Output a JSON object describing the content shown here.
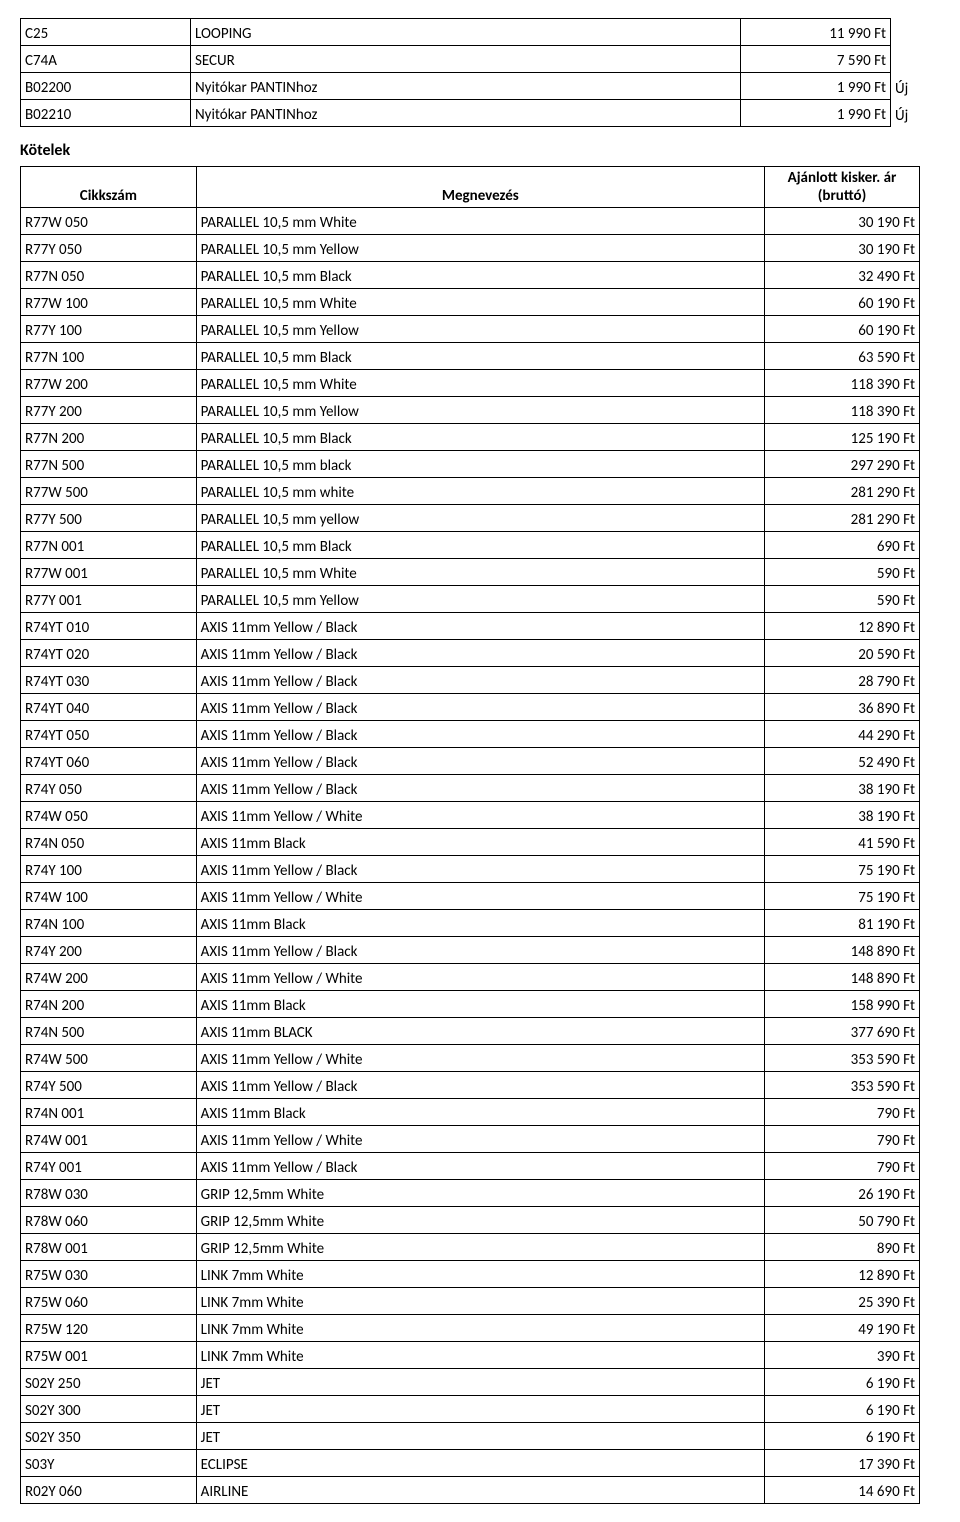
{
  "topRows": [
    {
      "code": "C25",
      "name": "LOOPING",
      "price": "11 990 Ft",
      "note": ""
    },
    {
      "code": "C74A",
      "name": "SECUR",
      "price": "7 590 Ft",
      "note": ""
    },
    {
      "code": "B02200",
      "name": "Nyitókar PANTINhoz",
      "price": "1 990 Ft",
      "note": "Új"
    },
    {
      "code": "B02210",
      "name": "Nyitókar PANTINhoz",
      "price": "1 990 Ft",
      "note": "Új"
    }
  ],
  "sectionTitle": "Kötelek",
  "headers": {
    "code": "Cikkszám",
    "name": "Megnevezés",
    "price": "Ajánlott kisker. ár (bruttó)"
  },
  "rows": [
    {
      "code": "R77W 050",
      "name": "PARALLEL 10,5 mm White",
      "price": "30 190 Ft"
    },
    {
      "code": "R77Y 050",
      "name": "PARALLEL 10,5 mm Yellow",
      "price": "30 190 Ft"
    },
    {
      "code": "R77N 050",
      "name": "PARALLEL 10,5 mm Black",
      "price": "32 490 Ft"
    },
    {
      "code": "R77W 100",
      "name": "PARALLEL 10,5 mm White",
      "price": "60 190 Ft"
    },
    {
      "code": "R77Y 100",
      "name": "PARALLEL 10,5 mm Yellow",
      "price": "60 190 Ft"
    },
    {
      "code": "R77N 100",
      "name": "PARALLEL 10,5 mm Black",
      "price": "63 590 Ft"
    },
    {
      "code": "R77W 200",
      "name": "PARALLEL 10,5 mm White",
      "price": "118 390 Ft"
    },
    {
      "code": "R77Y 200",
      "name": "PARALLEL 10,5 mm Yellow",
      "price": "118 390 Ft"
    },
    {
      "code": "R77N 200",
      "name": "PARALLEL 10,5 mm Black",
      "price": "125 190 Ft"
    },
    {
      "code": "R77N 500",
      "name": "PARALLEL 10,5 mm black",
      "price": "297 290 Ft"
    },
    {
      "code": "R77W 500",
      "name": "PARALLEL 10,5 mm white",
      "price": "281 290 Ft"
    },
    {
      "code": "R77Y 500",
      "name": "PARALLEL 10,5 mm yellow",
      "price": "281 290 Ft"
    },
    {
      "code": "R77N 001",
      "name": "PARALLEL 10,5 mm Black",
      "price": "690 Ft"
    },
    {
      "code": "R77W 001",
      "name": "PARALLEL 10,5 mm White",
      "price": "590 Ft"
    },
    {
      "code": "R77Y 001",
      "name": "PARALLEL 10,5 mm Yellow",
      "price": "590 Ft"
    },
    {
      "code": "R74YT 010",
      "name": "AXIS 11mm Yellow / Black",
      "price": "12 890 Ft"
    },
    {
      "code": "R74YT 020",
      "name": "AXIS 11mm Yellow / Black",
      "price": "20 590 Ft"
    },
    {
      "code": "R74YT 030",
      "name": "AXIS 11mm Yellow / Black",
      "price": "28 790 Ft"
    },
    {
      "code": "R74YT 040",
      "name": "AXIS 11mm Yellow / Black",
      "price": "36 890 Ft"
    },
    {
      "code": "R74YT 050",
      "name": "AXIS 11mm Yellow / Black",
      "price": "44 290 Ft"
    },
    {
      "code": "R74YT 060",
      "name": "AXIS 11mm Yellow / Black",
      "price": "52 490 Ft"
    },
    {
      "code": "R74Y 050",
      "name": "AXIS 11mm Yellow / Black",
      "price": "38 190 Ft"
    },
    {
      "code": "R74W 050",
      "name": "AXIS 11mm Yellow / White",
      "price": "38 190 Ft"
    },
    {
      "code": "R74N 050",
      "name": "AXIS 11mm Black",
      "price": "41 590 Ft"
    },
    {
      "code": "R74Y 100",
      "name": "AXIS 11mm Yellow / Black",
      "price": "75 190 Ft"
    },
    {
      "code": "R74W 100",
      "name": "AXIS 11mm Yellow / White",
      "price": "75 190 Ft"
    },
    {
      "code": "R74N 100",
      "name": "AXIS 11mm Black",
      "price": "81 190 Ft"
    },
    {
      "code": "R74Y 200",
      "name": "AXIS 11mm Yellow / Black",
      "price": "148 890 Ft"
    },
    {
      "code": "R74W 200",
      "name": "AXIS 11mm Yellow / White",
      "price": "148 890 Ft"
    },
    {
      "code": "R74N 200",
      "name": "AXIS 11mm Black",
      "price": "158 990 Ft"
    },
    {
      "code": "R74N 500",
      "name": "AXIS 11mm BLACK",
      "price": "377 690 Ft"
    },
    {
      "code": "R74W 500",
      "name": "AXIS 11mm Yellow / White",
      "price": "353 590 Ft"
    },
    {
      "code": "R74Y 500",
      "name": "AXIS 11mm Yellow / Black",
      "price": "353 590 Ft"
    },
    {
      "code": "R74N 001",
      "name": "AXIS 11mm Black",
      "price": "790 Ft"
    },
    {
      "code": "R74W 001",
      "name": "AXIS 11mm Yellow / White",
      "price": "790 Ft"
    },
    {
      "code": "R74Y 001",
      "name": "AXIS 11mm Yellow / Black",
      "price": "790 Ft"
    },
    {
      "code": "R78W 030",
      "name": "GRIP 12,5mm White",
      "price": "26 190 Ft"
    },
    {
      "code": "R78W 060",
      "name": "GRIP 12,5mm White",
      "price": "50 790 Ft"
    },
    {
      "code": "R78W 001",
      "name": "GRIP 12,5mm White",
      "price": "890 Ft"
    },
    {
      "code": "R75W 030",
      "name": "LINK 7mm White",
      "price": "12 890 Ft"
    },
    {
      "code": "R75W 060",
      "name": "LINK 7mm White",
      "price": "25 390 Ft"
    },
    {
      "code": "R75W 120",
      "name": "LINK 7mm White",
      "price": "49 190 Ft"
    },
    {
      "code": "R75W 001",
      "name": "LINK 7mm White",
      "price": "390 Ft"
    },
    {
      "code": "S02Y 250",
      "name": "JET",
      "price": "6 190 Ft"
    },
    {
      "code": "S02Y 300",
      "name": "JET",
      "price": "6 190 Ft"
    },
    {
      "code": "S02Y 350",
      "name": "JET",
      "price": "6 190 Ft"
    },
    {
      "code": "S03Y",
      "name": "ECLIPSE",
      "price": "17 390 Ft"
    },
    {
      "code": "R02Y 060",
      "name": "AIRLINE",
      "price": "14 690 Ft"
    }
  ]
}
